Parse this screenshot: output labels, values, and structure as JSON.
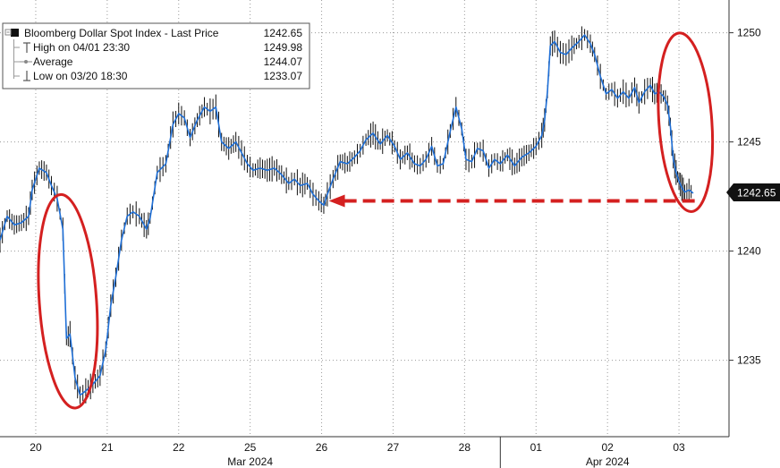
{
  "chart_data": {
    "type": "line",
    "chart_style": "candlestick-intraday",
    "legend": {
      "placement": "top-left",
      "items": [
        {
          "label": "Bloomberg Dollar Spot Index - Last Price",
          "value": "1242.65"
        },
        {
          "label": "High on 04/01 23:30",
          "value": "1249.98"
        },
        {
          "label": "Average",
          "value": "1244.07"
        },
        {
          "label": "Low on 03/20 18:30",
          "value": "1233.07"
        }
      ]
    },
    "y_axis": {
      "position": "right",
      "ylim": [
        1231.5,
        1251.5
      ],
      "ticks": [
        1235,
        1240,
        1245,
        1250
      ],
      "tick_labels": [
        "1235",
        "1240",
        "1245",
        "1250"
      ]
    },
    "x_axis": {
      "xlim": [
        0,
        10.2
      ],
      "tick_positions": [
        0.5,
        1.5,
        2.5,
        3.5,
        4.5,
        5.5,
        6.5,
        7.5,
        8.5,
        9.5
      ],
      "tick_labels": [
        "20",
        "21",
        "22",
        "25",
        "26",
        "27",
        "28",
        "01",
        "02",
        "03"
      ],
      "month_labels": [
        {
          "label": "Mar 2024",
          "at": 3.5
        },
        {
          "label": "Apr 2024",
          "at": 8.5
        }
      ],
      "month_separator_at": 7.0
    },
    "last_price_label": "1242.65",
    "grid": true,
    "series": [
      {
        "name": "Bloomberg Dollar Spot Index - Last Price",
        "color": "#1f6fd6",
        "points": [
          [
            0.0,
            1240.5
          ],
          [
            0.1,
            1241.6
          ],
          [
            0.2,
            1241.2
          ],
          [
            0.3,
            1241.3
          ],
          [
            0.4,
            1241.6
          ],
          [
            0.45,
            1242.8
          ],
          [
            0.55,
            1243.8
          ],
          [
            0.65,
            1243.6
          ],
          [
            0.72,
            1243.0
          ],
          [
            0.8,
            1242.4
          ],
          [
            0.88,
            1241.0
          ],
          [
            0.93,
            1236.0
          ],
          [
            0.98,
            1236.2
          ],
          [
            1.05,
            1234.2
          ],
          [
            1.12,
            1233.4
          ],
          [
            1.2,
            1233.6
          ],
          [
            1.3,
            1233.9
          ],
          [
            1.4,
            1234.3
          ],
          [
            1.48,
            1235.5
          ],
          [
            1.55,
            1237.5
          ],
          [
            1.62,
            1238.8
          ],
          [
            1.7,
            1240.5
          ],
          [
            1.78,
            1241.6
          ],
          [
            1.86,
            1241.8
          ],
          [
            1.95,
            1241.6
          ],
          [
            2.05,
            1241.0
          ],
          [
            2.1,
            1241.5
          ],
          [
            2.2,
            1243.6
          ],
          [
            2.32,
            1244.0
          ],
          [
            2.42,
            1245.8
          ],
          [
            2.5,
            1246.3
          ],
          [
            2.58,
            1246.1
          ],
          [
            2.66,
            1245.2
          ],
          [
            2.76,
            1246.0
          ],
          [
            2.86,
            1246.6
          ],
          [
            2.94,
            1246.4
          ],
          [
            3.02,
            1246.6
          ],
          [
            3.1,
            1245.0
          ],
          [
            3.2,
            1244.7
          ],
          [
            3.3,
            1245.0
          ],
          [
            3.38,
            1244.5
          ],
          [
            3.46,
            1244.0
          ],
          [
            3.54,
            1243.7
          ],
          [
            3.64,
            1243.8
          ],
          [
            3.74,
            1243.7
          ],
          [
            3.84,
            1243.8
          ],
          [
            3.94,
            1243.5
          ],
          [
            4.04,
            1243.1
          ],
          [
            4.12,
            1243.3
          ],
          [
            4.2,
            1243.0
          ],
          [
            4.3,
            1243.1
          ],
          [
            4.38,
            1242.6
          ],
          [
            4.46,
            1242.3
          ],
          [
            4.53,
            1242.1
          ],
          [
            4.58,
            1242.6
          ],
          [
            4.66,
            1243.3
          ],
          [
            4.76,
            1244.1
          ],
          [
            4.86,
            1244.0
          ],
          [
            4.96,
            1244.3
          ],
          [
            5.04,
            1244.6
          ],
          [
            5.12,
            1245.1
          ],
          [
            5.22,
            1245.4
          ],
          [
            5.32,
            1244.9
          ],
          [
            5.42,
            1245.3
          ],
          [
            5.52,
            1244.8
          ],
          [
            5.6,
            1244.2
          ],
          [
            5.7,
            1244.5
          ],
          [
            5.8,
            1244.0
          ],
          [
            5.88,
            1243.9
          ],
          [
            5.96,
            1244.2
          ],
          [
            6.04,
            1244.8
          ],
          [
            6.12,
            1243.9
          ],
          [
            6.2,
            1244.0
          ],
          [
            6.3,
            1245.5
          ],
          [
            6.38,
            1246.6
          ],
          [
            6.46,
            1245.6
          ],
          [
            6.52,
            1244.2
          ],
          [
            6.6,
            1244.1
          ],
          [
            6.68,
            1244.7
          ],
          [
            6.76,
            1244.6
          ],
          [
            6.84,
            1243.8
          ],
          [
            6.92,
            1244.2
          ],
          [
            7.0,
            1244.0
          ],
          [
            7.1,
            1244.4
          ],
          [
            7.2,
            1243.9
          ],
          [
            7.3,
            1244.3
          ],
          [
            7.4,
            1244.5
          ],
          [
            7.5,
            1244.8
          ],
          [
            7.58,
            1245.3
          ],
          [
            7.62,
            1246.0
          ],
          [
            7.66,
            1247.3
          ],
          [
            7.7,
            1249.4
          ],
          [
            7.76,
            1249.6
          ],
          [
            7.84,
            1249.1
          ],
          [
            7.92,
            1249.0
          ],
          [
            8.0,
            1249.3
          ],
          [
            8.1,
            1249.6
          ],
          [
            8.18,
            1249.9
          ],
          [
            8.26,
            1249.5
          ],
          [
            8.32,
            1249.0
          ],
          [
            8.4,
            1248.0
          ],
          [
            8.48,
            1247.2
          ],
          [
            8.56,
            1247.4
          ],
          [
            8.64,
            1247.0
          ],
          [
            8.72,
            1247.3
          ],
          [
            8.8,
            1247.0
          ],
          [
            8.88,
            1247.5
          ],
          [
            8.94,
            1246.8
          ],
          [
            9.02,
            1247.3
          ],
          [
            9.1,
            1247.6
          ],
          [
            9.16,
            1247.2
          ],
          [
            9.22,
            1247.3
          ],
          [
            9.28,
            1247.1
          ],
          [
            9.34,
            1246.7
          ],
          [
            9.38,
            1245.7
          ],
          [
            9.42,
            1244.2
          ],
          [
            9.46,
            1243.6
          ],
          [
            9.5,
            1243.2
          ],
          [
            9.54,
            1242.9
          ],
          [
            9.58,
            1242.7
          ],
          [
            9.64,
            1242.8
          ],
          [
            9.7,
            1242.65
          ]
        ]
      }
    ],
    "annotations": [
      {
        "type": "ellipse",
        "color": "#d42020",
        "around": {
          "x": [
            0.55,
            1.35
          ],
          "y": [
            1232.8,
            1242.6
          ]
        }
      },
      {
        "type": "ellipse",
        "color": "#d42020",
        "around": {
          "x": [
            9.22,
            9.96
          ],
          "y": [
            1241.8,
            1250.0
          ]
        }
      },
      {
        "type": "arrow",
        "color": "#d42020",
        "style": "dashed",
        "from": {
          "x": 9.72,
          "y": 1242.3
        },
        "to": {
          "x": 4.6,
          "y": 1242.3
        }
      }
    ]
  }
}
